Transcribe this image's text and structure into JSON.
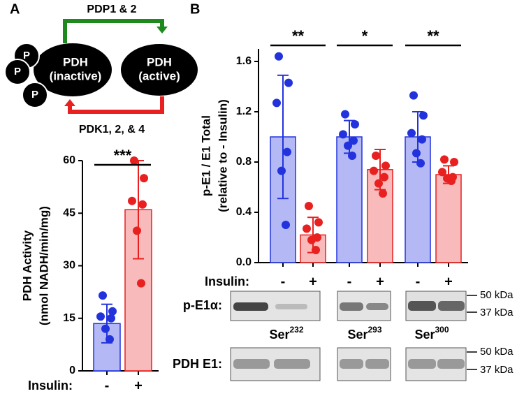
{
  "panels": [
    "A",
    "B"
  ],
  "diagram": {
    "top_arrow": "PDP1 & 2",
    "bottom_arrow": "PDK1, 2, &  4",
    "inactive": {
      "name": "PDH",
      "state": "(inactive)",
      "phosphate": "P"
    },
    "active": {
      "name": "PDH",
      "state": "(active)"
    }
  },
  "chart_data": [
    {
      "type": "bar",
      "ylabel": [
        "PDH Activity",
        "(nmol NADH/min/mg)"
      ],
      "x_label": "Insulin:",
      "categories": [
        "-",
        "+"
      ],
      "values": [
        13.5,
        46
      ],
      "errors": [
        5.5,
        14
      ],
      "colors": [
        "#2233dd",
        "#e82020"
      ],
      "fills": [
        "#b4b9f6",
        "#f8baba"
      ],
      "points": [
        [
          21.5,
          17,
          15.5,
          15,
          12,
          9
        ],
        [
          60,
          55,
          48.5,
          47.5,
          40,
          25
        ]
      ],
      "ylim": [
        0,
        60
      ],
      "yticks": [
        0,
        15,
        30,
        45,
        60
      ],
      "annotations": [
        "***"
      ]
    },
    {
      "type": "bar",
      "ylabel": [
        "p-E1 / E1 Total",
        "(relative to - Insulin)"
      ],
      "x_label": "Insulin:",
      "categories": [
        "-",
        "+",
        "-",
        "+",
        "-",
        "+"
      ],
      "values": [
        1.0,
        0.22,
        1.0,
        0.74,
        1.0,
        0.7
      ],
      "errors": [
        0.49,
        0.14,
        0.13,
        0.16,
        0.2,
        0.07
      ],
      "colors": [
        "#2233dd",
        "#e82020",
        "#2233dd",
        "#e82020",
        "#2233dd",
        "#e82020"
      ],
      "fills": [
        "#b4b9f6",
        "#f8baba",
        "#b4b9f6",
        "#f8baba",
        "#b4b9f6",
        "#f8baba"
      ],
      "points": [
        [
          1.64,
          1.43,
          1.27,
          0.88,
          0.73,
          0.3
        ],
        [
          0.45,
          0.32,
          0.27,
          0.2,
          0.18,
          0.1
        ],
        [
          1.18,
          1.1,
          1.02,
          0.97,
          0.93,
          0.85
        ],
        [
          0.85,
          0.77,
          0.73,
          0.68,
          0.63,
          0.55
        ],
        [
          1.33,
          1.17,
          1.03,
          0.98,
          0.87,
          0.79
        ],
        [
          0.82,
          0.8,
          0.72,
          0.68,
          0.67,
          0.65
        ]
      ],
      "ylim": [
        0,
        1.7
      ],
      "yticks": [
        {
          "value": 0,
          "label": "0.0"
        },
        0.4,
        0.8,
        1.2,
        1.6
      ],
      "annotations": [
        "**",
        "*",
        "**"
      ]
    }
  ],
  "blots": {
    "rows": [
      "p-E1α:",
      "PDH E1:"
    ],
    "sites": [
      {
        "residue": "Ser",
        "number": "232"
      },
      {
        "residue": "Ser",
        "number": "293"
      },
      {
        "residue": "Ser",
        "number": "300"
      }
    ],
    "markers": [
      "50 kDa",
      "37 kDa"
    ]
  }
}
